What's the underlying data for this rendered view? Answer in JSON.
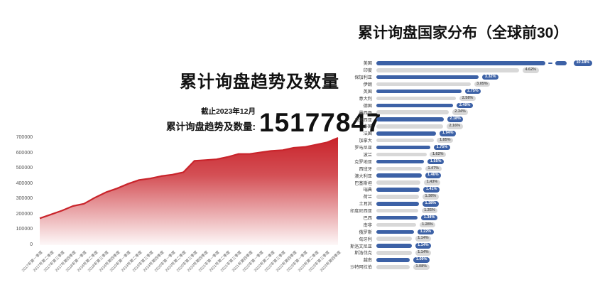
{
  "left_chart": {
    "title": "累计询盘趋势及数量",
    "annotation": {
      "asof": "截止2023年12月",
      "label": "累计询盘趋势及数量:",
      "value": "15177847"
    }
  },
  "right_chart": {
    "title": "累计询盘国家分布（全球前30）"
  },
  "colors": {
    "area_red": "#c9242b",
    "area_line": "#c9242b",
    "bar_blue": "#3c61a6",
    "bar_gray": "#d8d8d8",
    "pill_blue_text": "#ffffff",
    "pill_gray_text": "#5a5a5a",
    "axis_text": "#555555"
  },
  "chart_data": [
    {
      "type": "area",
      "title": "累计询盘趋势及数量",
      "xlabel": "",
      "ylabel": "",
      "ylim": [
        0,
        700000
      ],
      "yticks": [
        0,
        100000,
        200000,
        300000,
        400000,
        500000,
        600000,
        700000
      ],
      "grid": false,
      "x": [
        "2017年第一季度",
        "2017年第二季度",
        "2017年第三季度",
        "2017年第四季度",
        "2018年第一季度",
        "2018年第二季度",
        "2018年第三季度",
        "2018年第四季度",
        "2019年第一季度",
        "2019年第二季度",
        "2019年第三季度",
        "2019年第四季度",
        "2020年第一季度",
        "2020年第二季度",
        "2020年第三季度",
        "2020年第四季度",
        "2021年第一季度",
        "2021年第二季度",
        "2021年第三季度",
        "2021年第四季度",
        "2022年第一季度",
        "2022年第二季度",
        "2022年第三季度",
        "2022年第四季度",
        "2023年第一季度",
        "2023年第二季度",
        "2023年第三季度",
        "2023年第四季度"
      ],
      "values": [
        175000,
        200000,
        225000,
        255000,
        270000,
        310000,
        345000,
        370000,
        400000,
        425000,
        435000,
        450000,
        460000,
        475000,
        550000,
        555000,
        560000,
        575000,
        595000,
        595000,
        605000,
        615000,
        620000,
        635000,
        640000,
        655000,
        670000,
        700000
      ]
    },
    {
      "type": "bar",
      "title": "累计询盘国家分布（全球前30）",
      "orientation": "horizontal",
      "categories": [
        "美国",
        "印度",
        "保加利亚",
        "伊朗",
        "英国",
        "意大利",
        "德国",
        "墨西哥",
        "马来西亚",
        "泰国",
        "法国",
        "加拿大",
        "罗马尼亚",
        "波兰",
        "克罗地亚",
        "西班牙",
        "澳大利亚",
        "巴基斯坦",
        "瑞典",
        "荷兰",
        "土耳其",
        "印度尼西亚",
        "巴西",
        "南非",
        "俄罗斯",
        "匈牙利",
        "斯洛文尼亚",
        "斯洛伐克",
        "越南",
        "沙特阿拉伯"
      ],
      "values": [
        10.18,
        4.62,
        3.32,
        3.05,
        2.75,
        2.58,
        2.49,
        2.34,
        2.18,
        2.16,
        1.94,
        1.85,
        1.75,
        1.62,
        1.55,
        1.47,
        1.46,
        1.43,
        1.41,
        1.38,
        1.38,
        1.35,
        1.34,
        1.28,
        1.22,
        1.14,
        1.14,
        1.14,
        1.09,
        1.08
      ],
      "labels": [
        "10.18%",
        "4.62%",
        "3.32%",
        "3.05%",
        "2.75%",
        "2.58%",
        "2.49%",
        "2.34%",
        "2.18%",
        "2.16%",
        "1.94%",
        "1.85%",
        "1.75%",
        "1.62%",
        "1.55%",
        "1.47%",
        "1.46%",
        "1.43%",
        "1.41%",
        "1.38%",
        "1.38%",
        "1.35%",
        "1.34%",
        "1.28%",
        "1.22%",
        "1.14%",
        "1.14%",
        "1.14%",
        "1.09%",
        "1.08%"
      ],
      "truncated_first_bar": true
    }
  ]
}
